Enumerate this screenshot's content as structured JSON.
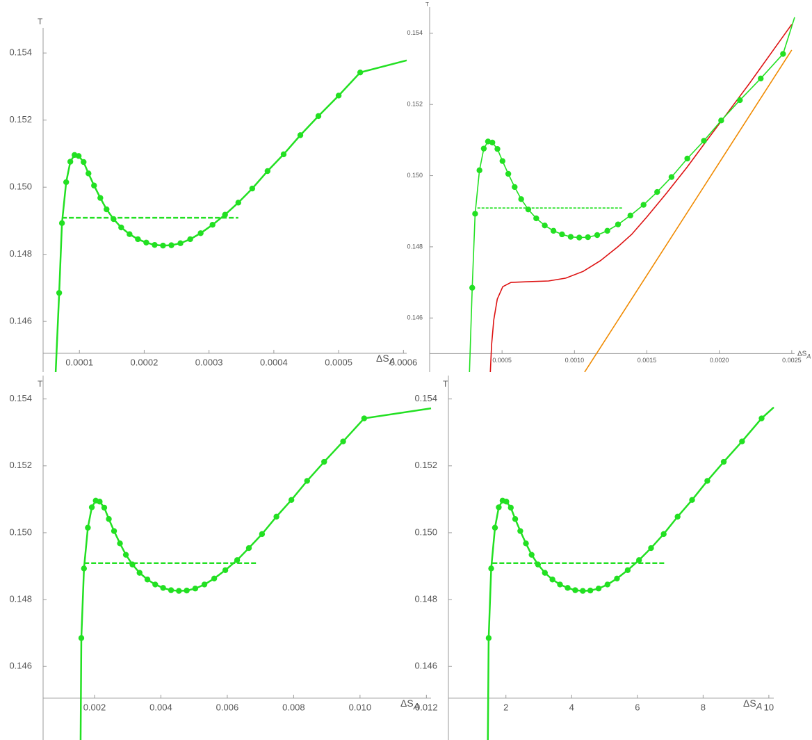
{
  "chart_data": [
    {
      "type": "line",
      "y_label": "T",
      "x_label": "ΔS",
      "x_label_sub": "A",
      "xlim": [
        4.4e-05,
        0.000605
      ],
      "ylim": [
        0.14449,
        0.15475
      ],
      "axes_origin": [
        4.4e-05,
        0.14505
      ],
      "xticks": [
        0.0001,
        0.0002,
        0.0003,
        0.0004,
        0.0005,
        0.0006
      ],
      "yticks": [
        0.146,
        0.148,
        {
          "value": 0.15,
          "label": "0.150"
        },
        0.152,
        0.154
      ],
      "series": [
        {
          "style": "dashed",
          "color": "#22e022",
          "x": [
            7.31e-05,
            0.0003452
          ],
          "values": [
            0.14909,
            0.14909
          ]
        },
        {
          "style": "line",
          "color": "#22e022",
          "x": [
            6.34e-05,
            6.88e-05,
            7.31e-05,
            7.96e-05,
            8.6e-05,
            9.25e-05,
            9.89e-05,
            0.0001065,
            0.000114,
            0.0001226,
            0.0001323,
            0.0001419,
            0.0001527,
            0.0001645,
            0.0001774,
            0.0001903,
            0.0002032,
            0.0002161,
            0.000229,
            0.0002419,
            0.0002559,
            0.000271,
            0.0002871,
            0.0003054,
            0.0003247,
            0.0003452,
            0.0003667,
            0.0003903,
            0.0004151,
            0.0004409,
            0.0004688,
            0.0005,
            0.0005333,
            0.000605
          ],
          "values": [
            0.14449,
            0.14685,
            0.14893,
            0.15015,
            0.15076,
            0.15096,
            0.15093,
            0.15075,
            0.15041,
            0.15005,
            0.14968,
            0.14934,
            0.14905,
            0.1488,
            0.1486,
            0.14845,
            0.14835,
            0.14828,
            0.14826,
            0.14827,
            0.14833,
            0.14845,
            0.14863,
            0.14888,
            0.14918,
            0.14954,
            0.14996,
            0.15048,
            0.15098,
            0.15155,
            0.15212,
            0.15273,
            0.15342,
            0.15378
          ]
        },
        {
          "style": "points",
          "color": "#22e022",
          "x": [
            6.88e-05,
            7.31e-05,
            7.96e-05,
            8.6e-05,
            9.25e-05,
            9.89e-05,
            0.0001065,
            0.000114,
            0.0001226,
            0.0001323,
            0.0001419,
            0.0001527,
            0.0001645,
            0.0001774,
            0.0001903,
            0.0002032,
            0.0002161,
            0.000229,
            0.0002419,
            0.0002559,
            0.000271,
            0.0002871,
            0.0003054,
            0.0003247,
            0.0003452,
            0.0003667,
            0.0003903,
            0.0004151,
            0.0004409,
            0.0004688,
            0.0005,
            0.0005333
          ],
          "values": [
            0.14685,
            0.14893,
            0.15015,
            0.15076,
            0.15096,
            0.15093,
            0.15075,
            0.15041,
            0.15005,
            0.14968,
            0.14934,
            0.14905,
            0.1488,
            0.1486,
            0.14845,
            0.14835,
            0.14828,
            0.14826,
            0.14827,
            0.14833,
            0.14845,
            0.14863,
            0.14888,
            0.14918,
            0.14954,
            0.14996,
            0.15048,
            0.15098,
            0.15155,
            0.15212,
            0.15273,
            0.15342
          ]
        }
      ]
    },
    {
      "type": "line",
      "y_label": "T",
      "x_label": "ΔS",
      "x_label_sub": "A",
      "xlim": [
        0,
        0.00252
      ],
      "ylim": [
        0.14448,
        0.15474
      ],
      "axes_origin": [
        0,
        0.145
      ],
      "xticks": [
        {
          "value": 0.0005,
          "label": "0.0005"
        },
        {
          "value": 0.001,
          "label": "0.0010"
        },
        {
          "value": 0.0015,
          "label": "0.0015"
        },
        {
          "value": 0.002,
          "label": "0.0020"
        },
        {
          "value": 0.0025,
          "label": "0.0025"
        }
      ],
      "yticks": [
        0.146,
        0.148,
        {
          "value": 0.15,
          "label": "0.150"
        },
        0.152,
        0.154
      ],
      "series": [
        {
          "style": "dashed",
          "color": "#22e022",
          "x": [
            0.00033,
            0.001335
          ],
          "values": [
            0.14909,
            0.14909
          ]
        },
        {
          "style": "line",
          "color": "#dd1111",
          "x": [
            0.000419,
            0.000428,
            0.000443,
            0.000467,
            0.000505,
            0.000562,
            0.000677,
            0.000821,
            0.00094,
            0.00106,
            0.001179,
            0.001299,
            0.001395,
            0.0015,
            0.001634,
            0.001778,
            0.001921,
            0.002065,
            0.002208,
            0.002352,
            0.0025
          ],
          "values": [
            0.14448,
            0.14526,
            0.14595,
            0.14653,
            0.14688,
            0.147,
            0.14702,
            0.14704,
            0.14712,
            0.14731,
            0.14761,
            0.148,
            0.14835,
            0.14884,
            0.1495,
            0.15024,
            0.15103,
            0.15181,
            0.15259,
            0.15341,
            0.15425
          ]
        },
        {
          "style": "line",
          "color": "#f08a00",
          "x": [
            0.00107,
            0.0025
          ],
          "values": [
            0.14448,
            0.15353
          ]
        },
        {
          "style": "line",
          "color": "#22e022",
          "x": [
            0.000275,
            0.000294,
            0.000314,
            0.000344,
            0.000374,
            0.000403,
            0.000433,
            0.000468,
            0.000503,
            0.000543,
            0.000587,
            0.000632,
            0.000681,
            0.000736,
            0.000795,
            0.000855,
            0.000914,
            0.000974,
            0.001033,
            0.001093,
            0.001157,
            0.001227,
            0.001301,
            0.001386,
            0.001477,
            0.001571,
            0.00167,
            0.001779,
            0.001894,
            0.002013,
            0.002142,
            0.002286,
            0.00244,
            0.00252
          ],
          "values": [
            0.14448,
            0.14685,
            0.14893,
            0.15015,
            0.15076,
            0.15096,
            0.15093,
            0.15075,
            0.15041,
            0.15005,
            0.14968,
            0.14934,
            0.14905,
            0.1488,
            0.1486,
            0.14845,
            0.14835,
            0.14828,
            0.14826,
            0.14827,
            0.14833,
            0.14845,
            0.14863,
            0.14888,
            0.14918,
            0.14954,
            0.14996,
            0.15048,
            0.15098,
            0.15155,
            0.15212,
            0.15273,
            0.15342,
            0.15445
          ]
        },
        {
          "style": "points",
          "color": "#22e022",
          "x": [
            0.000294,
            0.000314,
            0.000344,
            0.000374,
            0.000403,
            0.000433,
            0.000468,
            0.000503,
            0.000543,
            0.000587,
            0.000632,
            0.000681,
            0.000736,
            0.000795,
            0.000855,
            0.000914,
            0.000974,
            0.001033,
            0.001093,
            0.001157,
            0.001227,
            0.001301,
            0.001386,
            0.001477,
            0.001571,
            0.00167,
            0.001779,
            0.001894,
            0.002013,
            0.002142,
            0.002286,
            0.00244
          ],
          "values": [
            0.14685,
            0.14893,
            0.15015,
            0.15076,
            0.15096,
            0.15093,
            0.15075,
            0.15041,
            0.15005,
            0.14968,
            0.14934,
            0.14905,
            0.1488,
            0.1486,
            0.14845,
            0.14835,
            0.14828,
            0.14826,
            0.14827,
            0.14833,
            0.14845,
            0.14863,
            0.14888,
            0.14918,
            0.14954,
            0.14996,
            0.15048,
            0.15098,
            0.15155,
            0.15212,
            0.15273,
            0.15342
          ]
        }
      ]
    },
    {
      "type": "line",
      "y_label": "T",
      "x_label": "ΔS",
      "x_label_sub": "A",
      "xlim": [
        0.00045,
        0.01214
      ],
      "ylim": [
        0.1438,
        0.1547
      ],
      "axes_origin": [
        0.00045,
        0.14505
      ],
      "xticks": [
        0.002,
        0.004,
        0.006,
        0.008,
        {
          "value": 0.01,
          "label": "0.010"
        },
        0.012
      ],
      "yticks": [
        0.146,
        0.148,
        {
          "value": 0.15,
          "label": "0.150"
        },
        0.152,
        0.154
      ],
      "series": [
        {
          "style": "dashed",
          "color": "#22e022",
          "x": [
            0.00169,
            0.00692
          ],
          "values": [
            0.14909,
            0.14909
          ]
        },
        {
          "style": "line",
          "color": "#22e022",
          "x": [
            0.00158,
            0.001602,
            0.001682,
            0.001799,
            0.001918,
            0.002036,
            0.002155,
            0.002293,
            0.002431,
            0.002588,
            0.002766,
            0.002944,
            0.003141,
            0.003357,
            0.003594,
            0.00383,
            0.004067,
            0.004306,
            0.004542,
            0.004779,
            0.005035,
            0.005311,
            0.005606,
            0.005941,
            0.006297,
            0.006651,
            0.007047,
            0.007481,
            0.007933,
            0.008406,
            0.008919,
            0.009491,
            0.010126,
            0.01214
          ],
          "values": [
            0.1438,
            0.14685,
            0.14893,
            0.15015,
            0.15076,
            0.15096,
            0.15093,
            0.15075,
            0.15041,
            0.15005,
            0.14968,
            0.14934,
            0.14905,
            0.1488,
            0.1486,
            0.14845,
            0.14835,
            0.14828,
            0.14826,
            0.14827,
            0.14833,
            0.14845,
            0.14863,
            0.14888,
            0.14918,
            0.14954,
            0.14996,
            0.15048,
            0.15098,
            0.15155,
            0.15212,
            0.15273,
            0.15342,
            0.15372
          ]
        },
        {
          "style": "points",
          "color": "#22e022",
          "x": [
            0.001602,
            0.001682,
            0.001799,
            0.001918,
            0.002036,
            0.002155,
            0.002293,
            0.002431,
            0.002588,
            0.002766,
            0.002944,
            0.003141,
            0.003357,
            0.003594,
            0.00383,
            0.004067,
            0.004306,
            0.004542,
            0.004779,
            0.005035,
            0.005311,
            0.005606,
            0.005941,
            0.006297,
            0.006651,
            0.007047,
            0.007481,
            0.007933,
            0.008406,
            0.008919,
            0.009491,
            0.010126
          ],
          "values": [
            0.14685,
            0.14893,
            0.15015,
            0.15076,
            0.15096,
            0.15093,
            0.15075,
            0.15041,
            0.15005,
            0.14968,
            0.14934,
            0.14905,
            0.1488,
            0.1486,
            0.14845,
            0.14835,
            0.14828,
            0.14826,
            0.14827,
            0.14833,
            0.14845,
            0.14863,
            0.14888,
            0.14918,
            0.14954,
            0.14996,
            0.15048,
            0.15098,
            0.15155,
            0.15212,
            0.15273,
            0.15342
          ]
        }
      ]
    },
    {
      "type": "line",
      "y_label": "T",
      "x_label": "ΔS",
      "x_label_sub": "A",
      "xlim": [
        0.25,
        10.15
      ],
      "ylim": [
        0.1438,
        0.1547
      ],
      "axes_origin": [
        0.25,
        0.14505
      ],
      "xticks": [
        2,
        4,
        6,
        8,
        10
      ],
      "yticks": [
        0.146,
        0.148,
        {
          "value": 0.15,
          "label": "0.150"
        },
        0.152,
        0.154
      ],
      "series": [
        {
          "style": "dashed",
          "color": "#22e022",
          "x": [
            1.59,
            6.85
          ],
          "values": [
            0.14909,
            0.14909
          ]
        },
        {
          "style": "line",
          "color": "#22e022",
          "x": [
            1.45,
            1.475,
            1.552,
            1.667,
            1.782,
            1.898,
            2.013,
            2.149,
            2.282,
            2.437,
            2.609,
            2.782,
            2.975,
            3.186,
            3.416,
            3.646,
            3.879,
            4.109,
            4.339,
            4.569,
            4.82,
            5.09,
            5.379,
            5.705,
            6.05,
            6.416,
            6.801,
            7.224,
            7.665,
            8.128,
            8.628,
            9.184,
            9.78,
            10.15
          ],
          "values": [
            0.1438,
            0.14685,
            0.14893,
            0.15015,
            0.15076,
            0.15096,
            0.15093,
            0.15075,
            0.15041,
            0.15005,
            0.14968,
            0.14934,
            0.14905,
            0.1488,
            0.1486,
            0.14845,
            0.14835,
            0.14828,
            0.14826,
            0.14827,
            0.14833,
            0.14845,
            0.14863,
            0.14888,
            0.14918,
            0.14954,
            0.14996,
            0.15048,
            0.15098,
            0.15155,
            0.15212,
            0.15273,
            0.15342,
            0.15375
          ]
        },
        {
          "style": "points",
          "color": "#22e022",
          "x": [
            1.475,
            1.552,
            1.667,
            1.782,
            1.898,
            2.013,
            2.149,
            2.282,
            2.437,
            2.609,
            2.782,
            2.975,
            3.186,
            3.416,
            3.646,
            3.879,
            4.109,
            4.339,
            4.569,
            4.82,
            5.09,
            5.379,
            5.705,
            6.05,
            6.416,
            6.801,
            7.224,
            7.665,
            8.128,
            8.628,
            9.184,
            9.78
          ],
          "values": [
            0.14685,
            0.14893,
            0.15015,
            0.15076,
            0.15096,
            0.15093,
            0.15075,
            0.15041,
            0.15005,
            0.14968,
            0.14934,
            0.14905,
            0.1488,
            0.1486,
            0.14845,
            0.14835,
            0.14828,
            0.14826,
            0.14827,
            0.14833,
            0.14845,
            0.14863,
            0.14888,
            0.14918,
            0.14954,
            0.14996,
            0.15048,
            0.15098,
            0.15155,
            0.15212,
            0.15273,
            0.15342
          ]
        }
      ]
    }
  ]
}
